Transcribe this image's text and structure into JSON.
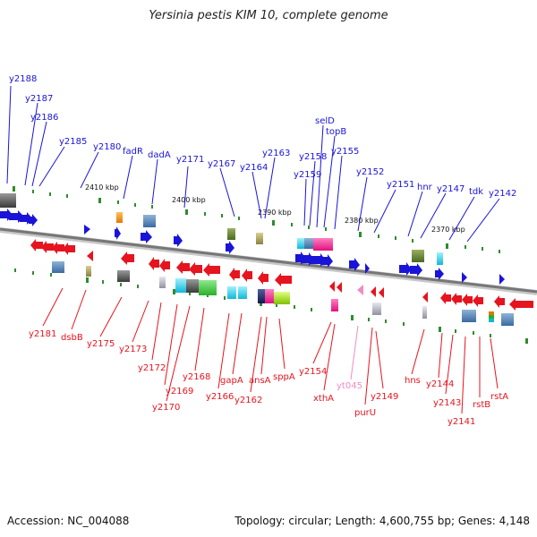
{
  "title": "Yersinia pestis KIM 10, complete genome",
  "footer": {
    "accession": "Accession: NC_004088",
    "stats": "Topology: circular; Length: 4,600,755 bp; Genes: 4,148"
  },
  "kbp_labels": [
    "2410 kbp",
    "2400 kbp",
    "2390 kbp",
    "2380 kbp",
    "2370 kbp"
  ],
  "top_genes": [
    "y2188",
    "y2187",
    "y2186",
    "y2185",
    "y2180",
    "fadR",
    "dadA",
    "y2171",
    "y2167",
    "y2164",
    "y2163",
    "y2159",
    "y2158",
    "selD",
    "topB",
    "y2155",
    "y2152",
    "y2151",
    "hnr",
    "y2147",
    "tdk",
    "y2142"
  ],
  "bottom_genes": [
    "y2181",
    "dsbB",
    "y2175",
    "y2173",
    "y2172",
    "y2169",
    "y2170",
    "y2168",
    "y2166",
    "gapA",
    "y2162",
    "ansA",
    "sppA",
    "y2154",
    "xthA",
    "yt045",
    "purU",
    "y2149",
    "hns",
    "y2144",
    "y2143",
    "y2141",
    "rstB",
    "rstA"
  ],
  "colors": {
    "forward": "#1a14d8",
    "reverse": "#e6141e",
    "pseudo": "#f08cc4",
    "backbone": "#888888",
    "tick": "#2e8b2e"
  }
}
